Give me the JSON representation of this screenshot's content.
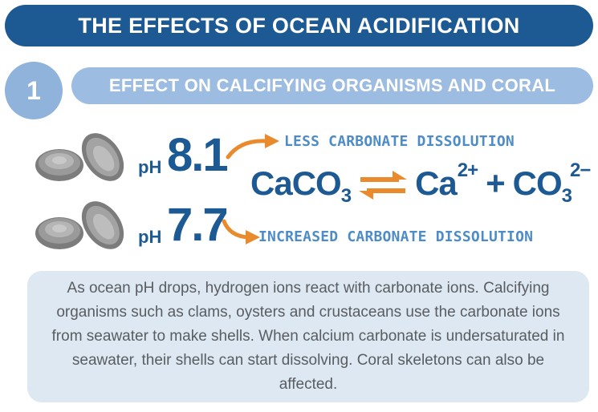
{
  "header": {
    "title": "THE EFFECTS OF OCEAN ACIDIFICATION"
  },
  "section": {
    "number": "1",
    "title": "EFFECT ON CALCIFYING ORGANISMS AND CORAL"
  },
  "ph_rows": [
    {
      "label": "pH",
      "value": "8.1",
      "note": "LESS CARBONATE DISSOLUTION"
    },
    {
      "label": "pH",
      "value": "7.7",
      "note": "INCREASED CARBONATE DISSOLUTION"
    }
  ],
  "equation": {
    "reactant": "CaCO",
    "reactant_sub": "3",
    "product1": "Ca",
    "product1_sup": "2+",
    "plus": "+",
    "product2": "CO",
    "product2_sub": "3",
    "product2_sup": "2−"
  },
  "info": {
    "text": "As ocean pH drops, hydrogen ions react with carbonate ions. Calcifying organisms such as clams, oysters and crustaceans use the carbonate ions from seawater to make shells. When calcium carbonate is undersaturated in seawater, their shells can start dissolving. Coral skeletons can also be affected."
  },
  "colors": {
    "dark_blue": "#1d5a94",
    "light_blue": "#9dbce1",
    "text_blue": "#4d8cc6",
    "arrow_orange": "#e98a2d",
    "box_bg": "#dde8f2",
    "shell_gray": "#8a8a8a"
  }
}
